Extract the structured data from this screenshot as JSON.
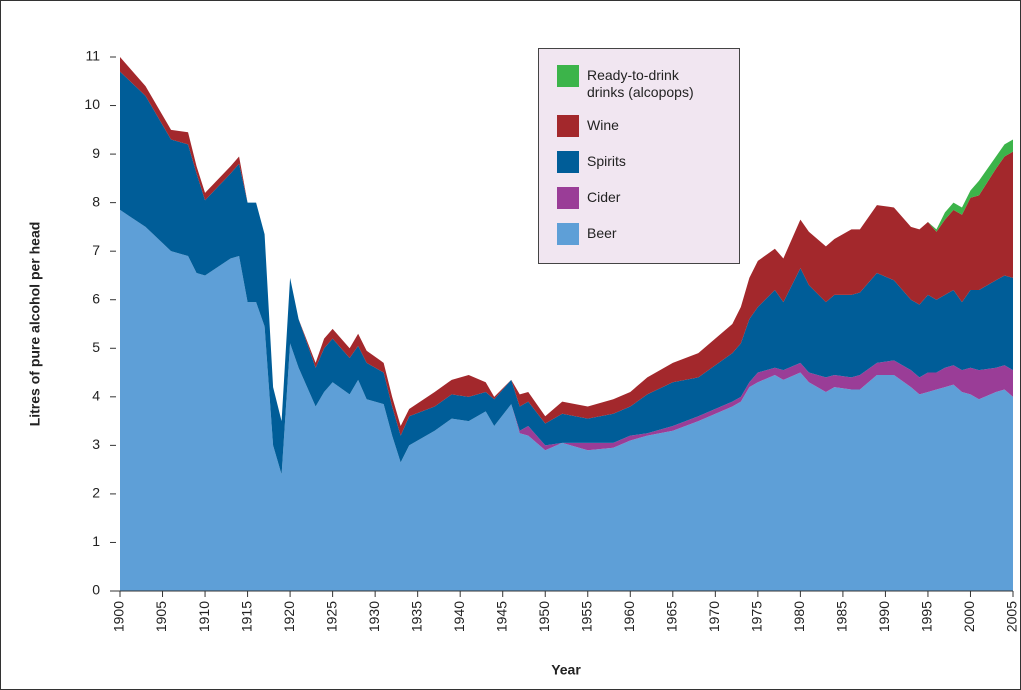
{
  "chart_data": {
    "type": "stacked_area",
    "xlabel": "Year",
    "ylabel": "Litres of pure alcohol per head",
    "x": [
      1900,
      1903,
      1906,
      1908,
      1909,
      1910,
      1913,
      1914,
      1915,
      1916,
      1917,
      1918,
      1919,
      1920,
      1921,
      1923,
      1924,
      1925,
      1927,
      1928,
      1929,
      1931,
      1932,
      1933,
      1934,
      1937,
      1939,
      1941,
      1943,
      1944,
      1946,
      1947,
      1948,
      1950,
      1952,
      1955,
      1958,
      1960,
      1962,
      1965,
      1968,
      1972,
      1973,
      1974,
      1975,
      1977,
      1978,
      1980,
      1981,
      1983,
      1984,
      1986,
      1987,
      1989,
      1991,
      1993,
      1994,
      1995,
      1996,
      1997,
      1998,
      1999,
      2000,
      2001,
      2003,
      2004,
      2005
    ],
    "series": [
      {
        "name": "Beer",
        "color": "#5e9fd7",
        "values": [
          7.85,
          7.5,
          7.0,
          6.9,
          6.55,
          6.5,
          6.85,
          6.9,
          5.95,
          5.95,
          5.45,
          3.0,
          2.4,
          5.1,
          4.6,
          3.8,
          4.1,
          4.3,
          4.05,
          4.35,
          3.95,
          3.85,
          3.2,
          2.65,
          3.0,
          3.3,
          3.55,
          3.5,
          3.7,
          3.4,
          3.85,
          3.25,
          3.2,
          2.9,
          3.05,
          2.9,
          2.95,
          3.1,
          3.2,
          3.3,
          3.5,
          3.8,
          3.9,
          4.2,
          4.3,
          4.45,
          4.35,
          4.5,
          4.3,
          4.1,
          4.2,
          4.15,
          4.15,
          4.45,
          4.45,
          4.2,
          4.05,
          4.1,
          4.15,
          4.2,
          4.25,
          4.1,
          4.05,
          3.95,
          4.1,
          4.15,
          4.0
        ]
      },
      {
        "name": "Cider",
        "color": "#9a3d97",
        "values": [
          0,
          0,
          0,
          0,
          0,
          0,
          0,
          0,
          0,
          0,
          0,
          0,
          0,
          0,
          0,
          0,
          0,
          0,
          0,
          0,
          0,
          0,
          0,
          0,
          0,
          0,
          0,
          0,
          0,
          0,
          0,
          0.05,
          0.2,
          0.1,
          0,
          0.15,
          0.1,
          0.1,
          0.05,
          0.1,
          0.1,
          0.1,
          0.1,
          0.1,
          0.2,
          0.15,
          0.2,
          0.2,
          0.2,
          0.3,
          0.25,
          0.25,
          0.3,
          0.25,
          0.3,
          0.35,
          0.35,
          0.4,
          0.35,
          0.4,
          0.4,
          0.45,
          0.55,
          0.6,
          0.5,
          0.5,
          0.55
        ]
      },
      {
        "name": "Spirits",
        "color": "#005d98",
        "values": [
          2.85,
          2.7,
          2.3,
          2.3,
          2.05,
          1.55,
          1.75,
          1.9,
          2.05,
          2.05,
          1.9,
          1.2,
          1.1,
          1.35,
          1.0,
          0.8,
          0.9,
          0.9,
          0.75,
          0.7,
          0.75,
          0.65,
          0.6,
          0.55,
          0.6,
          0.5,
          0.5,
          0.5,
          0.4,
          0.55,
          0.5,
          0.5,
          0.5,
          0.45,
          0.6,
          0.5,
          0.6,
          0.6,
          0.8,
          0.9,
          0.8,
          1.0,
          1.1,
          1.3,
          1.35,
          1.6,
          1.4,
          1.95,
          1.8,
          1.55,
          1.65,
          1.7,
          1.7,
          1.85,
          1.65,
          1.45,
          1.5,
          1.6,
          1.5,
          1.5,
          1.55,
          1.4,
          1.6,
          1.65,
          1.8,
          1.85,
          1.9
        ]
      },
      {
        "name": "Wine",
        "color": "#a3282c",
        "values": [
          0.3,
          0.2,
          0.2,
          0.25,
          0.15,
          0.15,
          0.15,
          0.15,
          0,
          0,
          0,
          0,
          0,
          0,
          0,
          0.1,
          0.2,
          0.2,
          0.2,
          0.25,
          0.25,
          0.2,
          0.2,
          0.2,
          0.15,
          0.3,
          0.3,
          0.45,
          0.2,
          0.05,
          0,
          0.25,
          0.2,
          0.15,
          0.25,
          0.25,
          0.3,
          0.3,
          0.35,
          0.4,
          0.5,
          0.6,
          0.75,
          0.85,
          0.95,
          0.85,
          0.9,
          1.0,
          1.1,
          1.15,
          1.15,
          1.35,
          1.3,
          1.4,
          1.5,
          1.5,
          1.55,
          1.5,
          1.4,
          1.55,
          1.65,
          1.8,
          1.9,
          1.95,
          2.3,
          2.45,
          2.6
        ]
      },
      {
        "name": "Ready-to-drink drinks (alcopops)",
        "color": "#3cb44a",
        "values": [
          0,
          0,
          0,
          0,
          0,
          0,
          0,
          0,
          0,
          0,
          0,
          0,
          0,
          0,
          0,
          0,
          0,
          0,
          0,
          0,
          0,
          0,
          0,
          0,
          0,
          0,
          0,
          0,
          0,
          0,
          0,
          0,
          0,
          0,
          0,
          0,
          0,
          0,
          0,
          0,
          0,
          0,
          0,
          0,
          0,
          0,
          0,
          0,
          0,
          0,
          0,
          0,
          0,
          0,
          0,
          0,
          0,
          0,
          0.05,
          0.15,
          0.15,
          0.15,
          0.15,
          0.3,
          0.25,
          0.25,
          0.25
        ]
      }
    ],
    "xlim": [
      1900,
      2005
    ],
    "xticks": [
      1900,
      1905,
      1910,
      1915,
      1920,
      1925,
      1930,
      1935,
      1940,
      1945,
      1950,
      1955,
      1960,
      1965,
      1970,
      1975,
      1980,
      1985,
      1990,
      1995,
      2000,
      2005
    ],
    "ylim": [
      0,
      11
    ],
    "yticks": [
      0,
      1,
      2,
      3,
      4,
      5,
      6,
      7,
      8,
      9,
      10,
      11
    ],
    "grid": false,
    "legend": "top-center"
  }
}
